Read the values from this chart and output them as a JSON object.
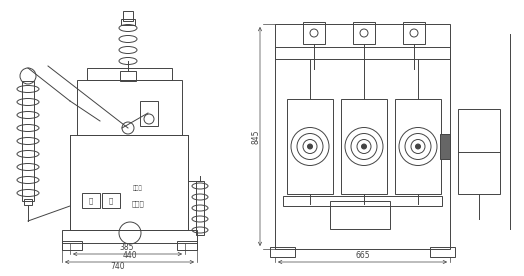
{
  "bg_color": "#ffffff",
  "line_color": "#444444",
  "dim_385": "385",
  "dim_440": "440",
  "dim_740": "740",
  "dim_845": "845",
  "dim_665": "665",
  "label_fen": "分",
  "label_he": "合",
  "label_wei_chu_neng": "未荣能",
  "label_yi_chu_neng": "已荣能"
}
